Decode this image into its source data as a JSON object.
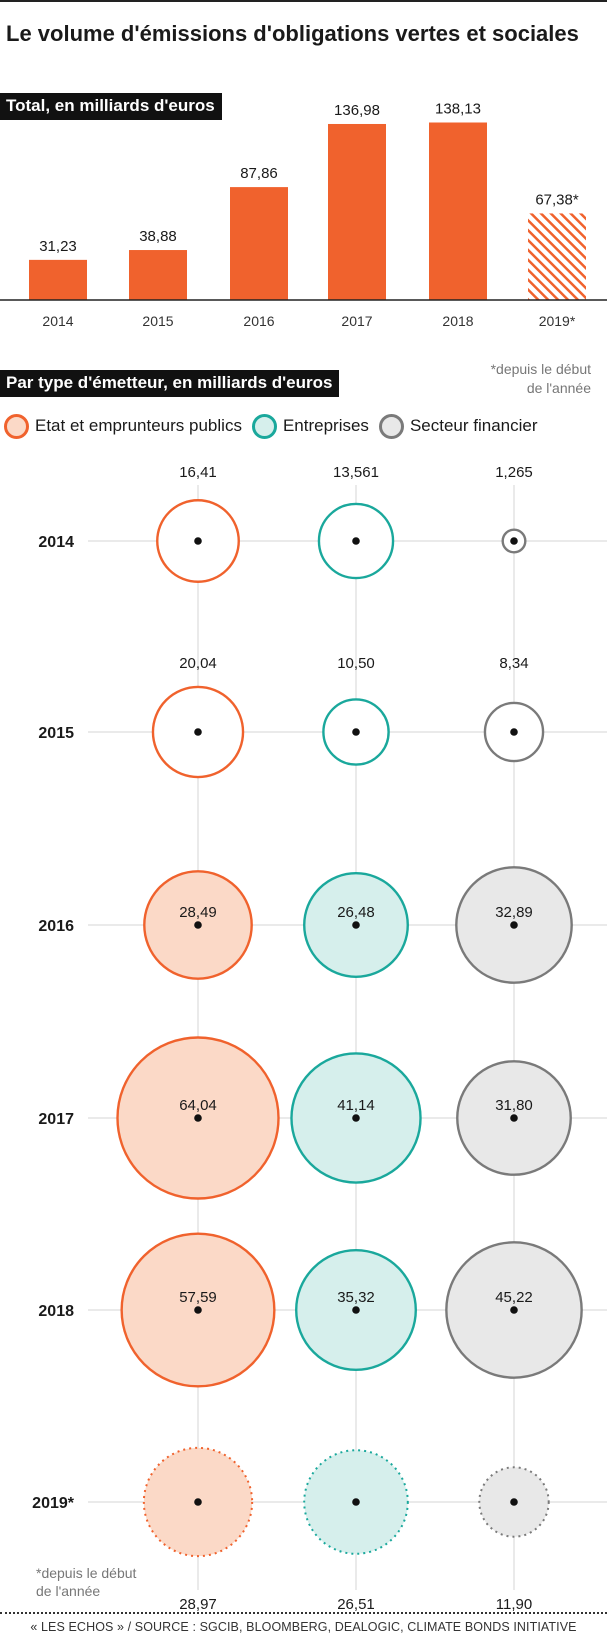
{
  "title": "Le volume d'émissions d'obligations vertes et sociales",
  "section1_label": "Total, en milliards d'euros",
  "section2_label": "Par type d'émetteur, en milliards d'euros",
  "note_top": [
    "*depuis le début",
    "de l'année"
  ],
  "note_bottom": [
    "*depuis le début",
    "de l'année"
  ],
  "footer": "« LES ECHOS » / SOURCE : SGCIB, BLOOMBERG, DEALOGIC, CLIMATE BONDS INITIATIVE",
  "colors": {
    "orange": "#f0622d",
    "orange_fill": "#fbd9c7",
    "teal": "#1aa89c",
    "teal_fill": "#d6efec",
    "grey": "#7a7a7a",
    "grey_fill": "#e8e8e8"
  },
  "chart_data": [
    {
      "type": "bar",
      "title": "Total, en milliards d'euros",
      "categories": [
        "2014",
        "2015",
        "2016",
        "2017",
        "2018",
        "2019*"
      ],
      "values": [
        31.23,
        38.88,
        87.86,
        136.98,
        138.13,
        67.38
      ],
      "value_labels": [
        "31,23",
        "38,88",
        "87,86",
        "136,98",
        "138,13",
        "67,38*"
      ],
      "partial_year": "2019*",
      "ylim": [
        0,
        150
      ]
    },
    {
      "type": "bubble",
      "title": "Par type d'émetteur, en milliards d'euros",
      "years": [
        "2014",
        "2015",
        "2016",
        "2017",
        "2018",
        "2019*"
      ],
      "series": [
        {
          "name": "Etat et emprunteurs publics",
          "color_key": "orange",
          "values": [
            16.41,
            20.04,
            28.49,
            64.04,
            57.59,
            28.97
          ],
          "labels": [
            "16,41",
            "20,04",
            "28,49",
            "64,04",
            "57,59",
            "28,97"
          ]
        },
        {
          "name": "Entreprises",
          "color_key": "teal",
          "values": [
            13.561,
            10.5,
            26.48,
            41.14,
            35.32,
            26.51
          ],
          "labels": [
            "13,561",
            "10,50",
            "26,48",
            "41,14",
            "35,32",
            "26,51"
          ]
        },
        {
          "name": "Secteur financier",
          "color_key": "grey",
          "values": [
            1.265,
            8.34,
            32.89,
            31.8,
            45.22,
            11.9
          ],
          "labels": [
            "1,265",
            "8,34",
            "32,89",
            "31,80",
            "45,22",
            "11,90"
          ]
        }
      ]
    }
  ]
}
